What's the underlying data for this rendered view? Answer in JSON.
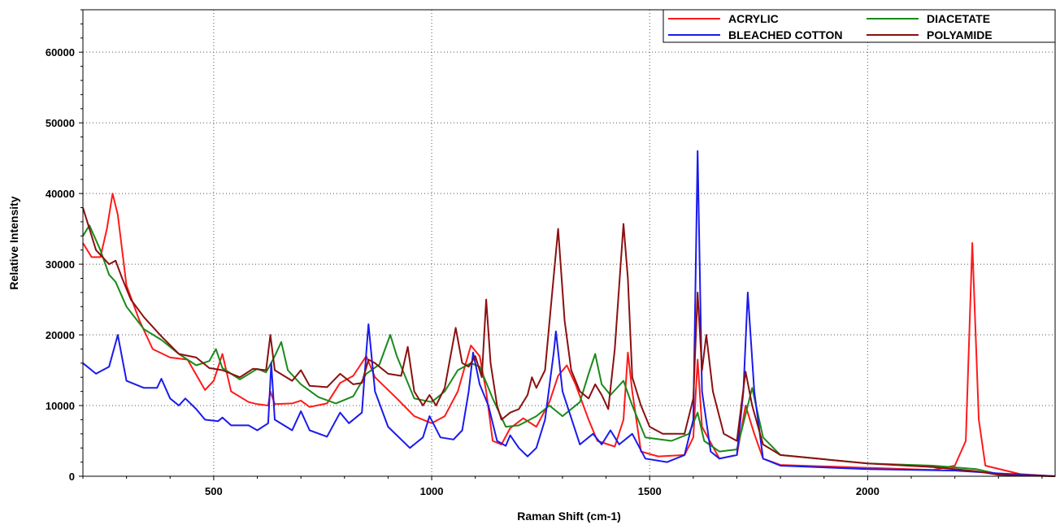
{
  "chart_data": {
    "type": "line",
    "xlabel": "Raman Shift (cm-1)",
    "ylabel": "Relative Intensity",
    "xlim": [
      200,
      2430
    ],
    "ylim": [
      0,
      66000
    ],
    "xticks": [
      500,
      1000,
      1500,
      2000
    ],
    "yticks": [
      0,
      10000,
      20000,
      30000,
      40000,
      50000,
      60000
    ],
    "grid": true,
    "legend_position": "top-right",
    "series": [
      {
        "name": "ACRYLIC",
        "color": "#ff1a1a",
        "points": [
          [
            200,
            33000
          ],
          [
            220,
            31000
          ],
          [
            240,
            31000
          ],
          [
            255,
            35000
          ],
          [
            268,
            40000
          ],
          [
            280,
            37000
          ],
          [
            300,
            27000
          ],
          [
            330,
            22000
          ],
          [
            360,
            18000
          ],
          [
            400,
            16800
          ],
          [
            440,
            16500
          ],
          [
            480,
            12200
          ],
          [
            500,
            13500
          ],
          [
            520,
            17300
          ],
          [
            540,
            12000
          ],
          [
            580,
            10500
          ],
          [
            600,
            10200
          ],
          [
            625,
            10000
          ],
          [
            630,
            12000
          ],
          [
            640,
            10200
          ],
          [
            680,
            10300
          ],
          [
            700,
            10700
          ],
          [
            720,
            9800
          ],
          [
            760,
            10300
          ],
          [
            790,
            13200
          ],
          [
            820,
            14200
          ],
          [
            850,
            17000
          ],
          [
            870,
            14000
          ],
          [
            920,
            11000
          ],
          [
            960,
            8500
          ],
          [
            1000,
            7500
          ],
          [
            1030,
            8500
          ],
          [
            1060,
            12000
          ],
          [
            1090,
            18500
          ],
          [
            1110,
            17000
          ],
          [
            1125,
            12000
          ],
          [
            1140,
            5000
          ],
          [
            1160,
            4500
          ],
          [
            1180,
            6800
          ],
          [
            1210,
            8200
          ],
          [
            1240,
            7000
          ],
          [
            1270,
            10500
          ],
          [
            1290,
            14200
          ],
          [
            1310,
            15700
          ],
          [
            1330,
            13000
          ],
          [
            1360,
            8000
          ],
          [
            1380,
            5000
          ],
          [
            1420,
            4200
          ],
          [
            1440,
            8000
          ],
          [
            1450,
            17500
          ],
          [
            1460,
            12000
          ],
          [
            1480,
            3500
          ],
          [
            1520,
            2800
          ],
          [
            1580,
            3000
          ],
          [
            1600,
            5500
          ],
          [
            1610,
            16500
          ],
          [
            1620,
            7000
          ],
          [
            1660,
            2500
          ],
          [
            1700,
            3000
          ],
          [
            1720,
            10000
          ],
          [
            1740,
            6000
          ],
          [
            1760,
            2500
          ],
          [
            1800,
            1600
          ],
          [
            2000,
            1200
          ],
          [
            2150,
            900
          ],
          [
            2200,
            1500
          ],
          [
            2225,
            5000
          ],
          [
            2240,
            33000
          ],
          [
            2255,
            8000
          ],
          [
            2270,
            1500
          ],
          [
            2350,
            300
          ],
          [
            2430,
            0
          ]
        ]
      },
      {
        "name": "DIACETATE",
        "color": "#1a8a1a",
        "points": [
          [
            200,
            34000
          ],
          [
            215,
            35500
          ],
          [
            240,
            32000
          ],
          [
            260,
            28500
          ],
          [
            275,
            27500
          ],
          [
            300,
            24000
          ],
          [
            340,
            20800
          ],
          [
            380,
            19300
          ],
          [
            420,
            17300
          ],
          [
            460,
            15700
          ],
          [
            490,
            16300
          ],
          [
            505,
            18000
          ],
          [
            520,
            15300
          ],
          [
            560,
            13700
          ],
          [
            600,
            15200
          ],
          [
            620,
            14700
          ],
          [
            640,
            17000
          ],
          [
            655,
            19000
          ],
          [
            670,
            15000
          ],
          [
            700,
            13000
          ],
          [
            740,
            11200
          ],
          [
            780,
            10300
          ],
          [
            820,
            11300
          ],
          [
            850,
            14500
          ],
          [
            880,
            15800
          ],
          [
            905,
            20000
          ],
          [
            920,
            17000
          ],
          [
            960,
            11000
          ],
          [
            1000,
            10500
          ],
          [
            1030,
            12000
          ],
          [
            1060,
            15000
          ],
          [
            1090,
            16000
          ],
          [
            1110,
            15500
          ],
          [
            1140,
            11000
          ],
          [
            1170,
            7000
          ],
          [
            1200,
            7200
          ],
          [
            1240,
            8500
          ],
          [
            1270,
            10000
          ],
          [
            1300,
            8500
          ],
          [
            1340,
            10500
          ],
          [
            1360,
            14500
          ],
          [
            1375,
            17300
          ],
          [
            1390,
            13000
          ],
          [
            1410,
            11500
          ],
          [
            1440,
            13500
          ],
          [
            1460,
            10000
          ],
          [
            1490,
            5500
          ],
          [
            1550,
            5000
          ],
          [
            1590,
            6000
          ],
          [
            1610,
            9000
          ],
          [
            1625,
            5000
          ],
          [
            1660,
            3500
          ],
          [
            1700,
            3800
          ],
          [
            1735,
            12500
          ],
          [
            1760,
            5500
          ],
          [
            1800,
            3000
          ],
          [
            2000,
            1800
          ],
          [
            2150,
            1500
          ],
          [
            2250,
            1000
          ],
          [
            2300,
            300
          ],
          [
            2430,
            0
          ]
        ]
      },
      {
        "name": "BLEACHED COTTON",
        "color": "#1a1aee",
        "points": [
          [
            200,
            16000
          ],
          [
            230,
            14500
          ],
          [
            260,
            15500
          ],
          [
            280,
            20000
          ],
          [
            300,
            13500
          ],
          [
            340,
            12500
          ],
          [
            370,
            12500
          ],
          [
            380,
            13800
          ],
          [
            400,
            11000
          ],
          [
            420,
            10000
          ],
          [
            435,
            11000
          ],
          [
            460,
            9500
          ],
          [
            480,
            8000
          ],
          [
            510,
            7800
          ],
          [
            520,
            8300
          ],
          [
            540,
            7200
          ],
          [
            580,
            7200
          ],
          [
            600,
            6500
          ],
          [
            625,
            7500
          ],
          [
            632,
            16000
          ],
          [
            640,
            8000
          ],
          [
            680,
            6500
          ],
          [
            700,
            9200
          ],
          [
            720,
            6500
          ],
          [
            760,
            5600
          ],
          [
            790,
            9000
          ],
          [
            810,
            7500
          ],
          [
            840,
            9000
          ],
          [
            850,
            17500
          ],
          [
            855,
            21500
          ],
          [
            870,
            12000
          ],
          [
            900,
            7000
          ],
          [
            950,
            4000
          ],
          [
            980,
            5500
          ],
          [
            995,
            8500
          ],
          [
            1020,
            5500
          ],
          [
            1050,
            5200
          ],
          [
            1070,
            6500
          ],
          [
            1085,
            12000
          ],
          [
            1095,
            17500
          ],
          [
            1110,
            13000
          ],
          [
            1130,
            10000
          ],
          [
            1150,
            5000
          ],
          [
            1170,
            4300
          ],
          [
            1180,
            5800
          ],
          [
            1200,
            4000
          ],
          [
            1220,
            2800
          ],
          [
            1240,
            4000
          ],
          [
            1260,
            8000
          ],
          [
            1280,
            17500
          ],
          [
            1285,
            20500
          ],
          [
            1300,
            12000
          ],
          [
            1340,
            4500
          ],
          [
            1370,
            6000
          ],
          [
            1390,
            4500
          ],
          [
            1410,
            6500
          ],
          [
            1430,
            4500
          ],
          [
            1460,
            6000
          ],
          [
            1490,
            2500
          ],
          [
            1540,
            2000
          ],
          [
            1580,
            3000
          ],
          [
            1600,
            8000
          ],
          [
            1610,
            46000
          ],
          [
            1620,
            12000
          ],
          [
            1640,
            3500
          ],
          [
            1660,
            2500
          ],
          [
            1700,
            3000
          ],
          [
            1715,
            12000
          ],
          [
            1725,
            26000
          ],
          [
            1740,
            12000
          ],
          [
            1760,
            2500
          ],
          [
            1800,
            1500
          ],
          [
            2000,
            1000
          ],
          [
            2200,
            800
          ],
          [
            2300,
            400
          ],
          [
            2430,
            0
          ]
        ]
      },
      {
        "name": "POLYAMIDE",
        "color": "#8b1010",
        "points": [
          [
            200,
            38000
          ],
          [
            230,
            32000
          ],
          [
            260,
            30000
          ],
          [
            275,
            30500
          ],
          [
            290,
            28000
          ],
          [
            310,
            25000
          ],
          [
            340,
            22500
          ],
          [
            380,
            19800
          ],
          [
            420,
            17300
          ],
          [
            460,
            16800
          ],
          [
            490,
            15300
          ],
          [
            520,
            15000
          ],
          [
            560,
            14000
          ],
          [
            590,
            15200
          ],
          [
            620,
            15000
          ],
          [
            630,
            20000
          ],
          [
            640,
            15000
          ],
          [
            680,
            13500
          ],
          [
            700,
            15000
          ],
          [
            720,
            12800
          ],
          [
            760,
            12600
          ],
          [
            790,
            14500
          ],
          [
            820,
            13000
          ],
          [
            840,
            13200
          ],
          [
            855,
            16500
          ],
          [
            870,
            16000
          ],
          [
            900,
            14500
          ],
          [
            930,
            14200
          ],
          [
            945,
            18300
          ],
          [
            960,
            12000
          ],
          [
            980,
            10000
          ],
          [
            995,
            11500
          ],
          [
            1010,
            10000
          ],
          [
            1030,
            12500
          ],
          [
            1055,
            21000
          ],
          [
            1070,
            16000
          ],
          [
            1085,
            15500
          ],
          [
            1100,
            17000
          ],
          [
            1115,
            14000
          ],
          [
            1125,
            25000
          ],
          [
            1135,
            16000
          ],
          [
            1150,
            10000
          ],
          [
            1160,
            8000
          ],
          [
            1180,
            9000
          ],
          [
            1200,
            9500
          ],
          [
            1220,
            11500
          ],
          [
            1230,
            14000
          ],
          [
            1240,
            12500
          ],
          [
            1260,
            15000
          ],
          [
            1275,
            25000
          ],
          [
            1290,
            35000
          ],
          [
            1305,
            22000
          ],
          [
            1320,
            15000
          ],
          [
            1340,
            12000
          ],
          [
            1360,
            11000
          ],
          [
            1375,
            13000
          ],
          [
            1390,
            11500
          ],
          [
            1405,
            9500
          ],
          [
            1420,
            18000
          ],
          [
            1440,
            35700
          ],
          [
            1450,
            28000
          ],
          [
            1460,
            14000
          ],
          [
            1480,
            10000
          ],
          [
            1500,
            7000
          ],
          [
            1530,
            6000
          ],
          [
            1580,
            6000
          ],
          [
            1600,
            11000
          ],
          [
            1610,
            26000
          ],
          [
            1620,
            15000
          ],
          [
            1630,
            20000
          ],
          [
            1645,
            12000
          ],
          [
            1670,
            6000
          ],
          [
            1700,
            5000
          ],
          [
            1720,
            14800
          ],
          [
            1735,
            10000
          ],
          [
            1760,
            4500
          ],
          [
            1800,
            3000
          ],
          [
            2000,
            1800
          ],
          [
            2150,
            1300
          ],
          [
            2250,
            700
          ],
          [
            2300,
            200
          ],
          [
            2430,
            0
          ]
        ]
      }
    ]
  }
}
